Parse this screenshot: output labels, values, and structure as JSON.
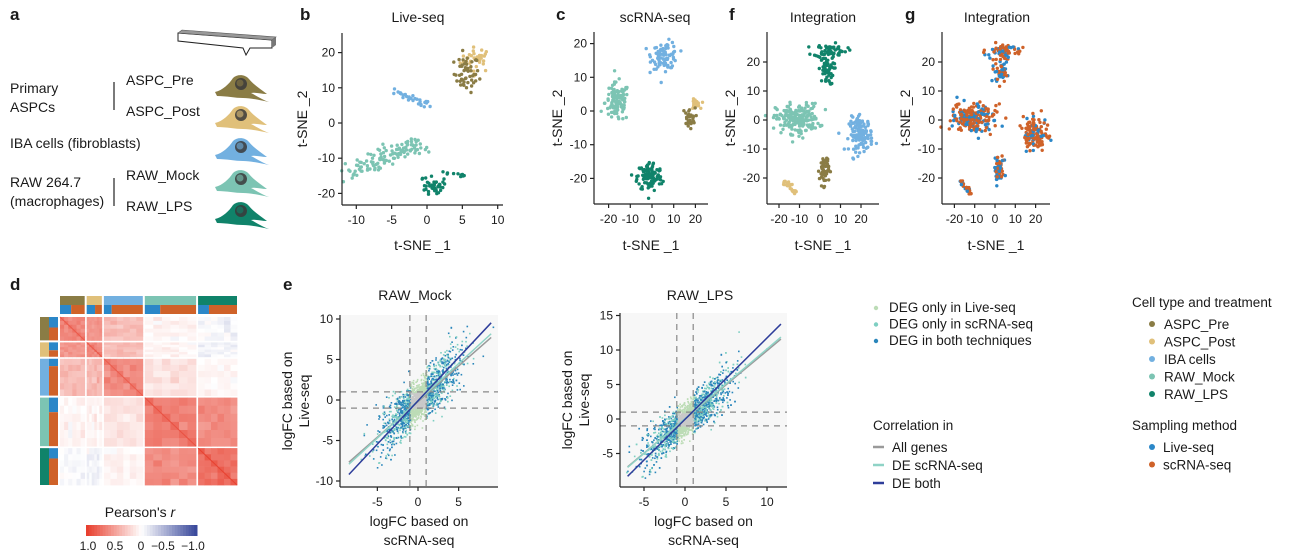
{
  "colors": {
    "ASPC_Pre": "#8a7c45",
    "ASPC_Post": "#e0c07a",
    "IBA": "#72b0e0",
    "RAW_Mock": "#7cc4b3",
    "RAW_LPS": "#10836a",
    "live_seq": "#2b87c8",
    "scrna_seq": "#cf6229",
    "deg_live_only": "#bcdcb6",
    "deg_scrna_only": "#7ecfc2",
    "deg_both": "#2a86bb",
    "not_deg": "#c9c9c9",
    "corr_all": "#9a9a9a",
    "corr_de_scrna": "#8fd3c6",
    "corr_de_both": "#2e3d9a",
    "heat_pos": "#e8402f",
    "heat_neg": "#3b4a9c"
  },
  "panel_a": {
    "label": "a",
    "groups": [
      {
        "name_lines": [
          "Primary",
          "ASPCs"
        ],
        "items": [
          "ASPC_Pre",
          "ASPC_Post"
        ]
      },
      {
        "name_lines": [
          "IBA cells (fibroblasts)"
        ],
        "items": []
      },
      {
        "name_lines": [
          "RAW 264.7",
          "(macrophages)"
        ],
        "items": [
          "RAW_Mock",
          "RAW_LPS"
        ]
      }
    ],
    "icons": [
      "pipette-icon",
      "cell-icon"
    ]
  },
  "chart_data": [
    {
      "id": "b",
      "label": "b",
      "type": "scatter",
      "title": "Live-seq",
      "xlabel": "t-SNE _1",
      "ylabel": "t-SNE _2",
      "xlim": [
        -11.5,
        10.5
      ],
      "ylim": [
        -23,
        25
      ],
      "xticks": [
        "-10",
        "-5",
        "0",
        "5",
        "10"
      ],
      "yticks": [
        "20",
        "10",
        "0",
        "-10",
        "-20"
      ],
      "color_by": "cell type",
      "clusters": [
        {
          "group": "ASPC_Post",
          "kind": "blob",
          "cx": 7,
          "cy": 18,
          "sx": 1.4,
          "sy": 2.2,
          "n": 35
        },
        {
          "group": "ASPC_Pre",
          "kind": "blob",
          "cx": 5.6,
          "cy": 14,
          "sx": 1.1,
          "sy": 3.3,
          "n": 50
        },
        {
          "group": "IBA",
          "kind": "band",
          "x1": -5,
          "y1": 9.5,
          "x2": 0.5,
          "y2": 4.5,
          "w": 0.8,
          "n": 30
        },
        {
          "group": "RAW_Mock",
          "kind": "band",
          "x1": -10.5,
          "y1": -14,
          "x2": -1,
          "y2": -6,
          "w": 2.2,
          "n": 120
        },
        {
          "group": "RAW_LPS",
          "kind": "blob",
          "cx": 1,
          "cy": -18,
          "sx": 0.8,
          "sy": 1.6,
          "n": 45
        },
        {
          "group": "RAW_LPS",
          "kind": "band",
          "x1": 2.5,
          "y1": -14,
          "x2": 5.2,
          "y2": -15,
          "w": 0.3,
          "n": 10
        }
      ]
    },
    {
      "id": "c",
      "label": "c",
      "type": "scatter",
      "title": "scRNA-seq",
      "xlabel": "t-SNE _1",
      "ylabel": "t-SNE _2",
      "xlim": [
        -26,
        26
      ],
      "ylim": [
        -28,
        23
      ],
      "xticks": [
        "-20",
        "-10",
        "0",
        "10",
        "20"
      ],
      "yticks": [
        "20",
        "10",
        "0",
        "-10",
        "-20"
      ],
      "color_by": "cell type",
      "clusters": [
        {
          "group": "RAW_Mock",
          "kind": "blob",
          "cx": -16,
          "cy": 2.5,
          "sx": 3.5,
          "sy": 3.6,
          "n": 110
        },
        {
          "group": "IBA",
          "kind": "blob",
          "cx": 6,
          "cy": 16.5,
          "sx": 3.8,
          "sy": 2.5,
          "n": 90
        },
        {
          "group": "ASPC_Post",
          "kind": "blob",
          "cx": 20,
          "cy": 2,
          "sx": 1.3,
          "sy": 0.9,
          "n": 25
        },
        {
          "group": "ASPC_Pre",
          "kind": "blob",
          "cx": 17,
          "cy": -2,
          "sx": 1.8,
          "sy": 1.8,
          "n": 30
        },
        {
          "group": "RAW_LPS",
          "kind": "blob",
          "cx": -1,
          "cy": -19.5,
          "sx": 3.6,
          "sy": 2.8,
          "n": 110
        }
      ]
    },
    {
      "id": "f",
      "label": "f",
      "type": "scatter",
      "title": "Integration",
      "xlabel": "t-SNE _1",
      "ylabel": "t-SNE _2",
      "xlim": [
        -26,
        29
      ],
      "ylim": [
        -29,
        30
      ],
      "xticks": [
        "-20",
        "-10",
        "0",
        "10",
        "20"
      ],
      "yticks": [
        "20",
        "10",
        "0",
        "-10",
        "-20"
      ],
      "color_by": "cell type",
      "clusters": [
        {
          "group": "RAW_LPS",
          "kind": "blob",
          "cx": 5,
          "cy": 24,
          "sx": 5,
          "sy": 1.4,
          "n": 60
        },
        {
          "group": "RAW_LPS",
          "kind": "blob",
          "cx": 3,
          "cy": 17,
          "sx": 2.3,
          "sy": 3,
          "n": 50
        },
        {
          "group": "RAW_Mock",
          "kind": "blob",
          "cx": -11,
          "cy": 0.5,
          "sx": 6.5,
          "sy": 3.2,
          "n": 200
        },
        {
          "group": "IBA",
          "kind": "blob",
          "cx": 20,
          "cy": -5,
          "sx": 3.6,
          "sy": 3.6,
          "n": 130
        },
        {
          "group": "ASPC_Pre",
          "kind": "blob",
          "cx": 2,
          "cy": -17,
          "sx": 1.4,
          "sy": 3.3,
          "n": 60
        },
        {
          "group": "ASPC_Post",
          "kind": "band",
          "x1": -17.5,
          "y1": -21,
          "x2": -12,
          "y2": -25,
          "w": 1,
          "n": 30
        }
      ]
    },
    {
      "id": "g",
      "label": "g",
      "type": "scatter",
      "title": "Integration",
      "xlabel": "t-SNE _1",
      "ylabel": "t-SNE _2",
      "xlim": [
        -26,
        29
      ],
      "ylim": [
        -29,
        30
      ],
      "xticks": [
        "-20",
        "-10",
        "0",
        "10",
        "20"
      ],
      "yticks": [
        "20",
        "10",
        "0",
        "-10",
        "-20"
      ],
      "color_by": "sampling method",
      "clusters": [
        {
          "kind": "blob",
          "cx": 5,
          "cy": 24,
          "sx": 5,
          "sy": 1.4,
          "n": 60,
          "live_fraction": 0.3
        },
        {
          "kind": "blob",
          "cx": 3,
          "cy": 17,
          "sx": 2.3,
          "sy": 3,
          "n": 50,
          "live_fraction": 0.4
        },
        {
          "kind": "blob",
          "cx": -11,
          "cy": 0.5,
          "sx": 6.5,
          "sy": 3.2,
          "n": 200,
          "live_fraction": 0.4
        },
        {
          "kind": "blob",
          "cx": 20,
          "cy": -5,
          "sx": 3.6,
          "sy": 3.6,
          "n": 130,
          "live_fraction": 0.25
        },
        {
          "kind": "blob",
          "cx": 2,
          "cy": -17,
          "sx": 1.4,
          "sy": 3.3,
          "n": 60,
          "live_fraction": 0.5
        },
        {
          "kind": "band",
          "x1": -17.5,
          "y1": -21,
          "x2": -12,
          "y2": -25,
          "w": 1,
          "n": 30,
          "live_fraction": 0.5
        }
      ]
    },
    {
      "id": "d",
      "label": "d",
      "type": "heatmap",
      "colorbar_title": "Pearson's r",
      "colorbar_ticks": [
        "1.0",
        "0.5",
        "0",
        "−0.5",
        "−1.0"
      ],
      "range": [
        1.0,
        -1.0
      ],
      "groups": [
        "ASPC_Pre",
        "ASPC_Post",
        "IBA",
        "RAW_Mock",
        "RAW_LPS"
      ],
      "group_sizes": [
        26,
        16,
        41,
        54,
        41
      ],
      "live_fraction": [
        0.45,
        0.55,
        0.2,
        0.3,
        0.28
      ],
      "block_means": [
        [
          0.62,
          0.55,
          0.35,
          0.05,
          -0.04
        ],
        [
          0.55,
          0.62,
          0.35,
          0.05,
          -0.07
        ],
        [
          0.35,
          0.35,
          0.6,
          0.14,
          0.04
        ],
        [
          0.05,
          0.05,
          0.14,
          0.66,
          0.6
        ],
        [
          -0.04,
          -0.07,
          0.04,
          0.6,
          0.74
        ]
      ]
    },
    {
      "id": "e1",
      "label": "e",
      "type": "scatter",
      "title": "RAW_Mock",
      "xlabel_lines": [
        "logFC based on",
        "scRNA-seq"
      ],
      "ylabel_lines": [
        "logFC based on",
        "Live-seq"
      ],
      "xlim": [
        -9.5,
        10
      ],
      "ylim": [
        -10.5,
        10.5
      ],
      "xticks": [
        "-5",
        "0",
        "5"
      ],
      "yticks": [
        "10",
        "5",
        "0",
        "-5",
        "-10"
      ],
      "thresholds": [
        -1,
        1
      ],
      "points": {
        "n": 2200,
        "x_sd": 2.4,
        "slope": 0.95,
        "noise_sd": 1.7
      },
      "fits": [
        {
          "key": "corr_all",
          "slope": 0.88,
          "intercept": -0.2,
          "x_range": [
            -8.5,
            9
          ]
        },
        {
          "key": "corr_de_scrna",
          "slope": 0.92,
          "intercept": -0.1,
          "x_range": [
            -8.5,
            9
          ]
        },
        {
          "key": "corr_de_both",
          "slope": 1.07,
          "intercept": -0.1,
          "x_range": [
            -8.5,
            9
          ]
        }
      ]
    },
    {
      "id": "e2",
      "label": "",
      "type": "scatter",
      "title": "RAW_LPS",
      "xlabel_lines": [
        "logFC based on",
        "scRNA-seq"
      ],
      "ylabel_lines": [
        "logFC based on",
        "Live-seq"
      ],
      "xlim": [
        -8.5,
        12.5
      ],
      "ylim": [
        -10,
        16
      ],
      "xticks": [
        "-5",
        "0",
        "5",
        "10"
      ],
      "yticks": [
        "15",
        "10",
        "5",
        "0",
        "-5"
      ],
      "thresholds": [
        -1,
        1
      ],
      "points": {
        "n": 2600,
        "x_sd": 2.6,
        "slope": 1.0,
        "noise_sd": 1.6
      },
      "fits": [
        {
          "key": "corr_all",
          "slope": 0.99,
          "intercept": 0.0,
          "x_range": [
            -7,
            11.7
          ]
        },
        {
          "key": "corr_de_scrna",
          "slope": 1.01,
          "intercept": 0.05,
          "x_range": [
            -7,
            11.7
          ]
        },
        {
          "key": "corr_de_both",
          "slope": 1.18,
          "intercept": -0.05,
          "x_range": [
            -7,
            11.7
          ]
        }
      ]
    }
  ],
  "legends": {
    "deg": [
      {
        "label": "DEG only in Live-seq",
        "key": "deg_live_only"
      },
      {
        "label": "DEG only in scRNA-seq",
        "key": "deg_scrna_only"
      },
      {
        "label": "DEG in both techniques",
        "key": "deg_both"
      }
    ],
    "correlation": {
      "title": "Correlation in",
      "items": [
        {
          "label": "All genes",
          "key": "corr_all"
        },
        {
          "label": "DE scRNA-seq",
          "key": "corr_de_scrna"
        },
        {
          "label": "DE both",
          "key": "corr_de_both"
        }
      ]
    },
    "cell_type": {
      "title": "Cell type and treatment",
      "items": [
        {
          "label": "ASPC_Pre",
          "key": "ASPC_Pre"
        },
        {
          "label": "ASPC_Post",
          "key": "ASPC_Post"
        },
        {
          "label": "IBA cells",
          "key": "IBA"
        },
        {
          "label": "RAW_Mock",
          "key": "RAW_Mock"
        },
        {
          "label": "RAW_LPS",
          "key": "RAW_LPS"
        }
      ]
    },
    "sampling": {
      "title": "Sampling method",
      "items": [
        {
          "label": "Live-seq",
          "key": "live_seq"
        },
        {
          "label": "scRNA-seq",
          "key": "scrna_seq"
        }
      ]
    }
  }
}
